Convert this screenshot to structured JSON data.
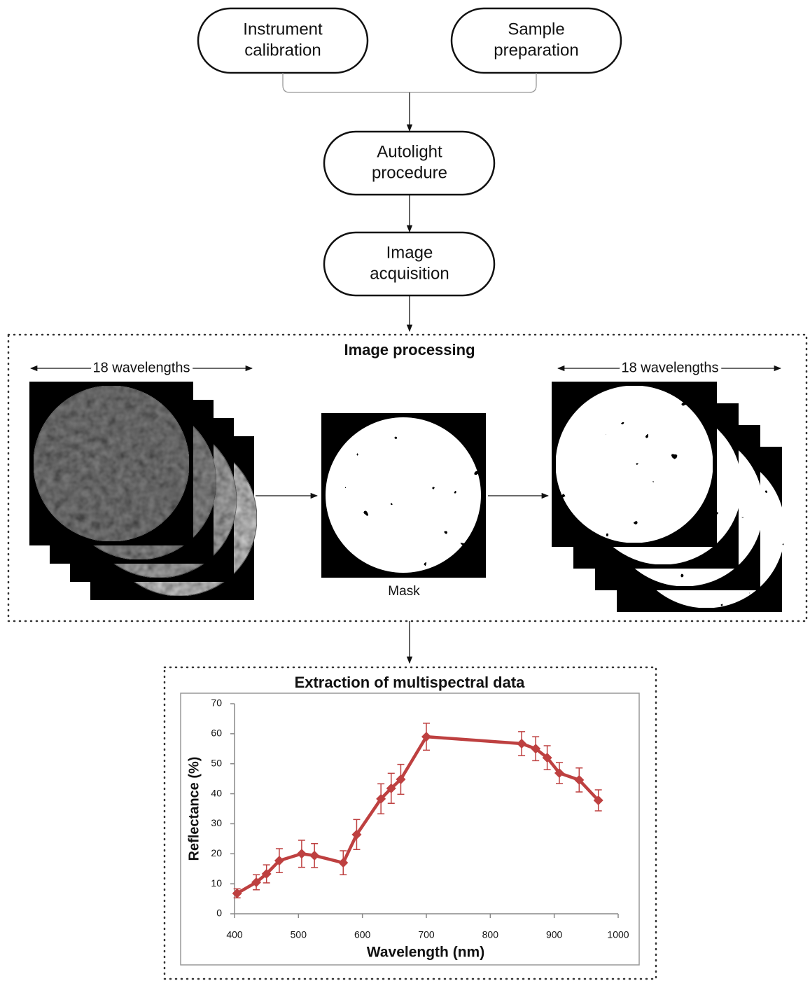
{
  "nodes": [
    {
      "lines": [
        "Instrument",
        "calibration"
      ]
    },
    {
      "lines": [
        "Sample",
        "preparation"
      ]
    },
    {
      "lines": [
        "Autolight",
        "procedure"
      ]
    },
    {
      "lines": [
        "Image",
        "acquisition"
      ]
    }
  ],
  "image_processing": {
    "title": "Image processing",
    "left_label": "18 wavelengths",
    "right_label": "18 wavelengths",
    "mask_label": "Mask"
  },
  "chart_data": {
    "type": "line",
    "title": "Extraction of multispectral data",
    "x_label": "Wavelength (nm)",
    "y_label": "Reflectance (%)",
    "x": [
      404,
      434,
      450,
      470,
      505,
      525,
      570,
      591,
      629,
      645,
      660,
      700,
      849,
      871,
      889,
      908,
      939,
      969
    ],
    "values": [
      6.8,
      10.5,
      13.3,
      17.7,
      20,
      19.4,
      17,
      26.4,
      38.3,
      41.8,
      44.8,
      59,
      56.7,
      55,
      52,
      46.9,
      44.6,
      37.8
    ],
    "errors": [
      1.5,
      2.5,
      3,
      4,
      4.5,
      4,
      4,
      5,
      5,
      5,
      5,
      4.5,
      4,
      4,
      4,
      3.5,
      4,
      3.5
    ],
    "color": "#be4040",
    "xlim": [
      400,
      1000
    ],
    "xticks": [
      400,
      500,
      600,
      700,
      800,
      900,
      1000
    ],
    "ylim": [
      0,
      70
    ],
    "yticks": [
      0,
      10,
      20,
      30,
      40,
      50,
      60,
      70
    ]
  }
}
